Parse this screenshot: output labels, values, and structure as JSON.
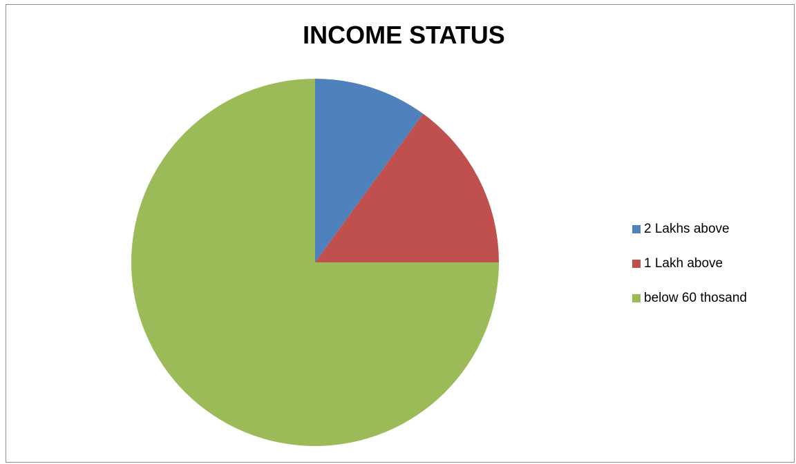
{
  "chart_data": {
    "type": "pie",
    "title": "INCOME STATUS",
    "categories": [
      "2 Lakhs above",
      "1 Lakh above",
      "below 60 thosand"
    ],
    "values": [
      10,
      15,
      75
    ],
    "colors": [
      "#4f81bd",
      "#c0504d",
      "#9bbb59"
    ],
    "legend_position": "right",
    "start_angle": "12 o'clock",
    "direction": "clockwise"
  }
}
